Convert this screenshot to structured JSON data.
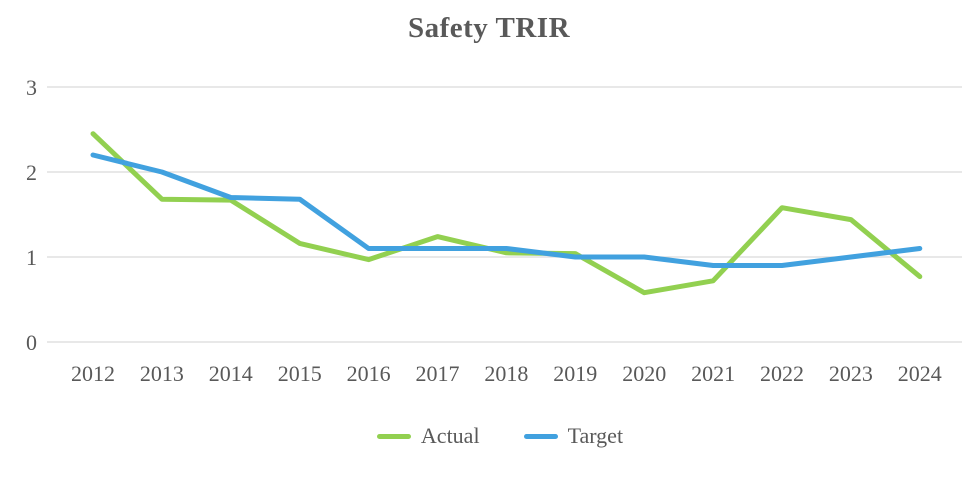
{
  "chart_data": {
    "type": "line",
    "title": "Safety TRIR",
    "categories": [
      "2012",
      "2013",
      "2014",
      "2015",
      "2016",
      "2017",
      "2018",
      "2019",
      "2020",
      "2021",
      "2022",
      "2023",
      "2024"
    ],
    "series": [
      {
        "name": "Actual",
        "color": "#92D050",
        "values": [
          2.45,
          1.68,
          1.67,
          1.16,
          0.97,
          1.24,
          1.05,
          1.04,
          0.58,
          0.72,
          1.58,
          1.44,
          0.77
        ]
      },
      {
        "name": "Target",
        "color": "#41A1DF",
        "values": [
          2.2,
          2.0,
          1.7,
          1.68,
          1.1,
          1.1,
          1.1,
          1.0,
          1.0,
          0.9,
          0.9,
          1.0,
          1.1
        ]
      }
    ],
    "xlabel": "",
    "ylabel": "",
    "ylim": [
      0,
      3
    ],
    "yticks": [
      0,
      1,
      2,
      3
    ],
    "grid": "horizontal-only",
    "gridline_color": "#D9D9D9",
    "label_color": "#595959",
    "legend_position": "bottom"
  }
}
